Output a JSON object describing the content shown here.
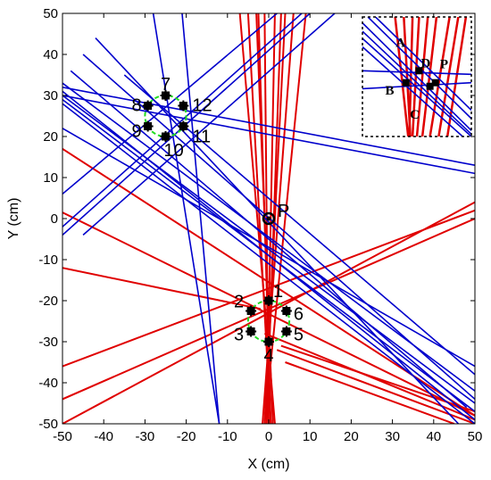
{
  "chart_data": {
    "type": "scatter",
    "title": "",
    "xlabel": "X (cm)",
    "ylabel": "Y (cm)",
    "xlim": [
      -50,
      50
    ],
    "ylim": [
      -50,
      50
    ],
    "xticks": [
      -50,
      -40,
      -30,
      -20,
      -10,
      0,
      10,
      20,
      30,
      40,
      50
    ],
    "yticks": [
      -50,
      -40,
      -30,
      -20,
      -10,
      0,
      10,
      20,
      30,
      40,
      50
    ],
    "grid": false,
    "colors": {
      "red_group": "#e00000",
      "blue_group": "#0000cc",
      "circle": "#22dd22",
      "marker": "#000000"
    },
    "circles": [
      {
        "center": [
          0,
          -25
        ],
        "radius": 5
      },
      {
        "center": [
          -25,
          25
        ],
        "radius": 5
      }
    ],
    "points": [
      {
        "label": "1",
        "x": 0,
        "y": -20
      },
      {
        "label": "2",
        "x": -4.3,
        "y": -22.5
      },
      {
        "label": "3",
        "x": -4.3,
        "y": -27.5
      },
      {
        "label": "4",
        "x": 0,
        "y": -30
      },
      {
        "label": "5",
        "x": 4.3,
        "y": -27.5
      },
      {
        "label": "6",
        "x": 4.3,
        "y": -22.5
      },
      {
        "label": "7",
        "x": -25,
        "y": 30
      },
      {
        "label": "8",
        "x": -29.3,
        "y": 27.5
      },
      {
        "label": "9",
        "x": -29.3,
        "y": 22.5
      },
      {
        "label": "10",
        "x": -25,
        "y": 20
      },
      {
        "label": "11",
        "x": -20.7,
        "y": 22.5
      },
      {
        "label": "12",
        "x": -20.7,
        "y": 27.5
      },
      {
        "label": "P",
        "x": 0,
        "y": 0
      }
    ],
    "red_lines": [
      [
        [
          -1,
          50
        ],
        [
          0,
          -50
        ]
      ],
      [
        [
          -2.5,
          50
        ],
        [
          0.5,
          -50
        ]
      ],
      [
        [
          -3,
          50
        ],
        [
          1,
          -50
        ]
      ],
      [
        [
          4,
          50
        ],
        [
          -1,
          -50
        ]
      ],
      [
        [
          3,
          50
        ],
        [
          -0.5,
          -50
        ]
      ],
      [
        [
          6,
          50
        ],
        [
          -1.5,
          -50
        ]
      ],
      [
        [
          1.5,
          50
        ],
        [
          -0.5,
          -50
        ]
      ],
      [
        [
          -5,
          50
        ],
        [
          0.5,
          -50
        ]
      ],
      [
        [
          9,
          50
        ],
        [
          -1,
          -50
        ]
      ],
      [
        [
          -7,
          50
        ],
        [
          1.5,
          -50
        ]
      ],
      [
        [
          -50,
          17
        ],
        [
          50,
          -48
        ]
      ],
      [
        [
          -50,
          1.5
        ],
        [
          50,
          -48
        ]
      ],
      [
        [
          -50,
          -12
        ],
        [
          -2,
          -22
        ]
      ],
      [
        [
          -50,
          -50
        ],
        [
          50,
          4
        ]
      ],
      [
        [
          -50,
          -36
        ],
        [
          50,
          2
        ]
      ],
      [
        [
          -50,
          -44
        ],
        [
          50,
          0
        ]
      ],
      [
        [
          -1,
          -28
        ],
        [
          50,
          -49
        ]
      ],
      [
        [
          2,
          -32
        ],
        [
          50,
          -50
        ]
      ],
      [
        [
          4,
          -35
        ],
        [
          45,
          -50
        ]
      ],
      [
        [
          3,
          -31
        ],
        [
          50,
          -47
        ]
      ]
    ],
    "blue_lines": [
      [
        [
          -50,
          30
        ],
        [
          50,
          -45
        ]
      ],
      [
        [
          -50,
          33
        ],
        [
          50,
          -42
        ]
      ],
      [
        [
          -50,
          29
        ],
        [
          50,
          -47
        ]
      ],
      [
        [
          -50,
          31
        ],
        [
          50,
          -49
        ]
      ],
      [
        [
          -50,
          28
        ],
        [
          50,
          -50
        ]
      ],
      [
        [
          -48,
          36
        ],
        [
          48,
          -46
        ]
      ],
      [
        [
          -45,
          40
        ],
        [
          50,
          -44
        ]
      ],
      [
        [
          -42,
          44
        ],
        [
          46,
          -50
        ]
      ],
      [
        [
          -50,
          32
        ],
        [
          50,
          13
        ]
      ],
      [
        [
          -50,
          30
        ],
        [
          50,
          11
        ]
      ],
      [
        [
          -50,
          6
        ],
        [
          2,
          50
        ]
      ],
      [
        [
          -50,
          -2
        ],
        [
          8,
          50
        ]
      ],
      [
        [
          -50,
          -4
        ],
        [
          10,
          50
        ]
      ],
      [
        [
          -45,
          -4
        ],
        [
          16,
          50
        ]
      ],
      [
        [
          -28,
          50
        ],
        [
          -12,
          -50
        ]
      ],
      [
        [
          -21,
          50
        ],
        [
          -12,
          -50
        ]
      ],
      [
        [
          -50,
          22
        ],
        [
          50,
          -36
        ]
      ],
      [
        [
          -35,
          35
        ],
        [
          50,
          -38
        ]
      ]
    ],
    "inset": {
      "labels": [
        {
          "text": "A",
          "x": 0.35,
          "y": 0.25
        },
        {
          "text": "D",
          "x": 0.58,
          "y": 0.42
        },
        {
          "text": "P",
          "x": 0.75,
          "y": 0.43
        },
        {
          "text": "B",
          "x": 0.25,
          "y": 0.65
        },
        {
          "text": "C",
          "x": 0.48,
          "y": 0.85
        }
      ],
      "red_lines": [
        [
          [
            0.3,
            0
          ],
          [
            0.42,
            1
          ]
        ],
        [
          [
            0.38,
            0
          ],
          [
            0.44,
            1
          ]
        ],
        [
          [
            0.46,
            0
          ],
          [
            0.43,
            1
          ]
        ],
        [
          [
            0.52,
            0
          ],
          [
            0.46,
            1
          ]
        ],
        [
          [
            0.6,
            0
          ],
          [
            0.5,
            1
          ]
        ],
        [
          [
            0.68,
            0
          ],
          [
            0.55,
            1
          ]
        ],
        [
          [
            0.8,
            0
          ],
          [
            0.62,
            1
          ]
        ],
        [
          [
            0.88,
            0
          ],
          [
            0.7,
            1
          ]
        ],
        [
          [
            0.95,
            0
          ],
          [
            0.78,
            1
          ]
        ]
      ],
      "blue_lines": [
        [
          [
            0,
            0.05
          ],
          [
            1,
            0.95
          ]
        ],
        [
          [
            0,
            0.12
          ],
          [
            1,
            0.98
          ]
        ],
        [
          [
            0,
            0.18
          ],
          [
            1,
            1.0
          ]
        ],
        [
          [
            0,
            0.25
          ],
          [
            0.92,
            1.0
          ]
        ],
        [
          [
            0.05,
            0
          ],
          [
            1,
            0.85
          ]
        ],
        [
          [
            0.12,
            0
          ],
          [
            1,
            0.78
          ]
        ],
        [
          [
            0,
            0.45
          ],
          [
            1,
            0.48
          ]
        ],
        [
          [
            0,
            0.6
          ],
          [
            1,
            0.55
          ]
        ]
      ],
      "markers": [
        {
          "x": 0.52,
          "y": 0.45
        },
        {
          "x": 0.62,
          "y": 0.58
        },
        {
          "x": 0.67,
          "y": 0.55
        },
        {
          "x": 0.4,
          "y": 0.55
        }
      ]
    }
  }
}
